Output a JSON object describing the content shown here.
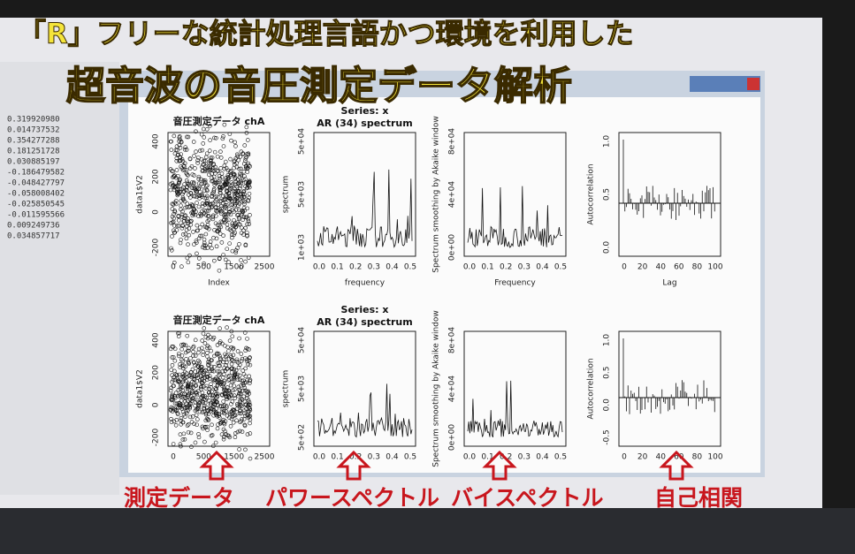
{
  "overlay": {
    "line1": "「R」フリーな統計処理言語かつ環境を利用した",
    "line2": "超音波の音圧測定データ解析",
    "labels": [
      "測定データ",
      "パワースペクトル",
      "バイスペクトル",
      "自己相関"
    ]
  },
  "console_values": [
    "0.319920980",
    "0.014737532",
    "0.354277288",
    "0.181251728",
    "0.030885197",
    "-0.186479582",
    "-0.048427797",
    "-0.058008402",
    "-0.025850545",
    "-0.011595566",
    "0.009249736",
    "0.034857717"
  ],
  "rows": [
    {
      "panels": [
        {
          "title": "音圧測定データ chA",
          "ylabel": "data1$V2",
          "xlabel": "Index",
          "xticks": [
            "0",
            "500",
            "1500",
            "2500"
          ],
          "yticks": [
            "-200",
            "0",
            "200",
            "400"
          ]
        },
        {
          "title": "Series: x",
          "subtitle": "AR (34) spectrum",
          "ylabel": "spectrum",
          "xlabel": "frequency",
          "xticks": [
            "0.0",
            "0.1",
            "0.2",
            "0.3",
            "0.4",
            "0.5"
          ],
          "yticks": [
            "1e+03",
            "5e+03",
            "5e+04"
          ]
        },
        {
          "ylabel": "Spectrum smoothing by Akaike window",
          "xlabel": "Frequency",
          "xticks": [
            "0.0",
            "0.1",
            "0.2",
            "0.3",
            "0.4",
            "0.5"
          ],
          "yticks": [
            "0e+00",
            "4e+04",
            "8e+04"
          ]
        },
        {
          "ylabel": "Autocorrelation",
          "xlabel": "Lag",
          "xticks": [
            "0",
            "20",
            "40",
            "60",
            "80",
            "100"
          ],
          "yticks": [
            "0.0",
            "0.5",
            "1.0"
          ]
        }
      ]
    },
    {
      "panels": [
        {
          "title": "音圧測定データ chA",
          "ylabel": "data1$V2",
          "xticks": [
            "0",
            "500",
            "1500",
            "2500"
          ],
          "yticks": [
            "-200",
            "0",
            "200",
            "400"
          ]
        },
        {
          "title": "Series: x",
          "subtitle": "AR (34) spectrum",
          "ylabel": "spectrum",
          "xticks": [
            "0.0",
            "0.1",
            "0.2",
            "0.3",
            "0.4",
            "0.5"
          ],
          "yticks": [
            "5e+02",
            "5e+03",
            "5e+04"
          ]
        },
        {
          "ylabel": "Spectrum smoothing by Akaike window",
          "xticks": [
            "0.0",
            "0.1",
            "0.2",
            "0.3",
            "0.4",
            "0.5"
          ],
          "yticks": [
            "0e+00",
            "4e+04",
            "8e+04"
          ]
        },
        {
          "ylabel": "Autocorrelation",
          "xticks": [
            "0",
            "20",
            "40",
            "60",
            "80",
            "100"
          ],
          "yticks": [
            "-0.5",
            "0.0",
            "0.5",
            "1.0"
          ]
        }
      ]
    }
  ]
}
